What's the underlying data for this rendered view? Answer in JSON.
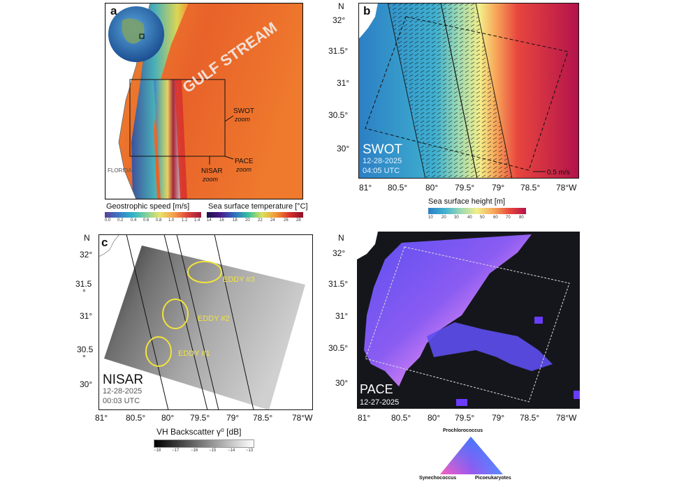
{
  "panels": {
    "a": {
      "letter": "a",
      "labels": {
        "gulf_stream": "GULF STREAM",
        "florida": "FLORIDA",
        "swot": "SWOT",
        "swot_zoom": "zoom",
        "pace": "PACE",
        "pace_zoom": "zoom",
        "nisar": "NISAR",
        "nisar_zoom": "zoom"
      },
      "colorbars": [
        {
          "title": "Geostrophic speed [m/s]",
          "ticks": [
            "0.0",
            "0.2",
            "0.4",
            "0.6",
            "0.8",
            "1.0",
            "1.2",
            "1.4"
          ]
        },
        {
          "title": "Sea surface temperature [°C]",
          "ticks": [
            "14",
            "16",
            "18",
            "20",
            "22",
            "24",
            "26",
            "28"
          ]
        }
      ]
    },
    "b": {
      "letter": "b",
      "north": "N",
      "lat_ticks": [
        "32°",
        "31.5°",
        "31°",
        "30.5°",
        "30°"
      ],
      "lon_ticks": [
        "81°",
        "80.5°",
        "80°",
        "79.5°",
        "79°",
        "78.5°",
        "78°W"
      ],
      "title": "SWOT",
      "date": "12-28-2025",
      "time": "04:05 UTC",
      "scale_label": "0.5 m/s",
      "colorbar": {
        "title": "Sea surface height [m]",
        "ticks": [
          "10",
          "20",
          "30",
          "40",
          "50",
          "60",
          "70",
          "80"
        ]
      }
    },
    "c": {
      "letter": "c",
      "north": "N",
      "lat_ticks": [
        "32°",
        "31.5",
        "°",
        "31°",
        "30.5",
        "°",
        "30°"
      ],
      "lon_ticks": [
        "81°",
        "80.5°",
        "80°",
        "79.5°",
        "79°",
        "78.5°",
        "78°W"
      ],
      "title": "NISAR",
      "date": "12-28-2025",
      "time": "00:03 UTC",
      "eddies": [
        "EDDY #1",
        "EDDY #2",
        "EDDY #3"
      ],
      "colorbar": {
        "title": "VH Backscatter γ⁰  [dB]",
        "ticks": [
          "−18",
          "−17",
          "−16",
          "−15",
          "−14",
          "−13"
        ]
      }
    },
    "d": {
      "letter": "d",
      "north": "N",
      "lat_ticks": [
        "32°",
        "31.5°",
        "31°",
        "30.5°",
        "30°"
      ],
      "lon_ticks": [
        "81°",
        "80.5°",
        "80°",
        "79.5°",
        "79°",
        "78.5°",
        "78°W"
      ],
      "title": "PACE",
      "date": "12-27-2025",
      "ternary": {
        "top": "Prochlorococcus",
        "left": "Synechococcus",
        "right": "Picoeukaryotes"
      }
    }
  },
  "colors": {
    "speed_cmap": [
      "#5a3e9a",
      "#3b78c4",
      "#2fb3c9",
      "#7fd19a",
      "#e9e36a",
      "#f4a04a",
      "#e0433b",
      "#9c1c3c"
    ],
    "sst_cmap": [
      "#1b1248",
      "#4a1a8a",
      "#2f6cc0",
      "#36c0a0",
      "#d8e25a",
      "#f39a34",
      "#d8332b",
      "#8e0f2a"
    ],
    "ssh_cmap": [
      "#2c7fc4",
      "#3fb0d0",
      "#9bd9b4",
      "#f3ee8a",
      "#f7a95a",
      "#e8463e",
      "#b3124b"
    ],
    "ternary": {
      "top": "#3c7cff",
      "left": "#ff5fbe",
      "right": "#6a3cff"
    }
  }
}
